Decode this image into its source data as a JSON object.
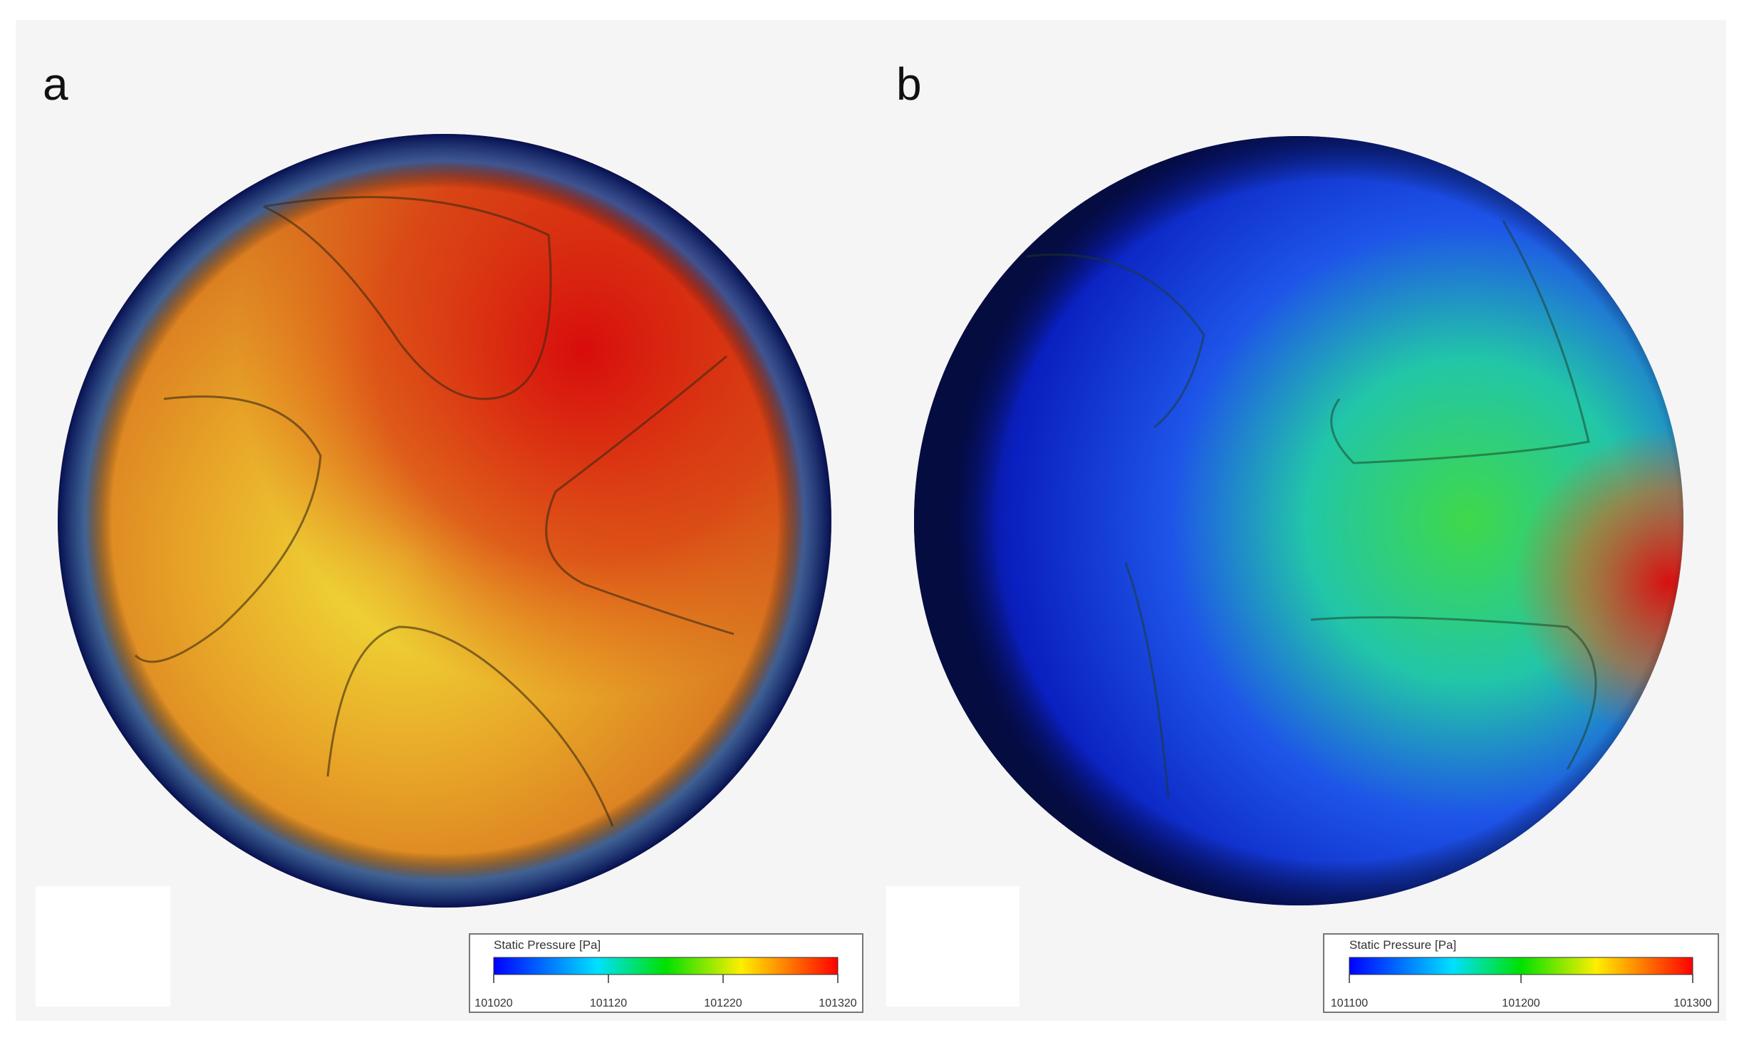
{
  "panels": [
    {
      "label": "a",
      "colorbar": {
        "title": "Static Pressure [Pa]",
        "ticks": [
          101020,
          101120,
          101220,
          101320
        ]
      }
    },
    {
      "label": "b",
      "colorbar": {
        "title": "Static Pressure [Pa]",
        "ticks": [
          101100,
          101200,
          101300
        ]
      }
    }
  ]
}
